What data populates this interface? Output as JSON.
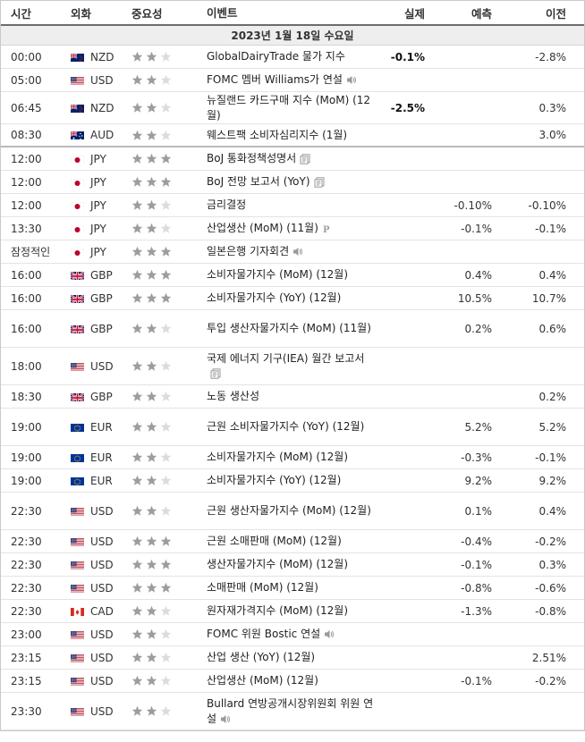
{
  "header": {
    "time": "시간",
    "currency": "외화",
    "importance": "중요성",
    "event": "이벤트",
    "actual": "실제",
    "forecast": "예측",
    "previous": "이전"
  },
  "date_label": "2023년 1월 18일 수요일",
  "colors": {
    "star_filled": "#9d9d9d",
    "star_empty": "#dcdcdc",
    "header_border": "#6c6c6c",
    "date_bg": "#eeeeee"
  },
  "events": [
    {
      "time": "00:00",
      "flag": "nz",
      "currency": "NZD",
      "stars": 2,
      "title": "GlobalDairyTrade 물가 지수",
      "icon": "",
      "actual": "-0.1%",
      "forecast": "",
      "previous": "-2.8%"
    },
    {
      "time": "05:00",
      "flag": "us",
      "currency": "USD",
      "stars": 2,
      "title": "FOMC 멤버 Williams가 연설",
      "icon": "speaker-icon",
      "actual": "",
      "forecast": "",
      "previous": ""
    },
    {
      "time": "06:45",
      "flag": "nz",
      "currency": "NZD",
      "stars": 2,
      "title": "뉴질랜드 카드구매 지수 (MoM) (12월)",
      "icon": "",
      "actual": "-2.5%",
      "forecast": "",
      "previous": "0.3%"
    },
    {
      "time": "08:30",
      "flag": "au",
      "currency": "AUD",
      "stars": 2,
      "title": "웨스트팩 소비자심리지수 (1월)",
      "icon": "",
      "actual": "",
      "forecast": "",
      "previous": "3.0%"
    },
    {
      "time": "12:00",
      "flag": "jp",
      "currency": "JPY",
      "stars": 3,
      "title": "BoJ 통화정책성명서",
      "icon": "document-icon",
      "actual": "",
      "forecast": "",
      "previous": ""
    },
    {
      "time": "12:00",
      "flag": "jp",
      "currency": "JPY",
      "stars": 3,
      "title": "BoJ 전망 보고서 (YoY)",
      "icon": "document-icon",
      "actual": "",
      "forecast": "",
      "previous": ""
    },
    {
      "time": "12:00",
      "flag": "jp",
      "currency": "JPY",
      "stars": 2,
      "title": "금리결정",
      "icon": "",
      "actual": "",
      "forecast": "-0.10%",
      "previous": "-0.10%"
    },
    {
      "time": "13:30",
      "flag": "jp",
      "currency": "JPY",
      "stars": 2,
      "title": "산업생산 (MoM) (11월)",
      "icon": "preliminary-icon",
      "actual": "",
      "forecast": "-0.1%",
      "previous": "-0.1%"
    },
    {
      "time": "잠정적인",
      "flag": "jp",
      "currency": "JPY",
      "stars": 3,
      "title": "일본은행 기자회견",
      "icon": "speaker-icon",
      "actual": "",
      "forecast": "",
      "previous": ""
    },
    {
      "time": "16:00",
      "flag": "gb",
      "currency": "GBP",
      "stars": 3,
      "title": "소비자물가지수 (MoM) (12월)",
      "icon": "",
      "actual": "",
      "forecast": "0.4%",
      "previous": "0.4%"
    },
    {
      "time": "16:00",
      "flag": "gb",
      "currency": "GBP",
      "stars": 3,
      "title": "소비자물가지수 (YoY) (12월)",
      "icon": "",
      "actual": "",
      "forecast": "10.5%",
      "previous": "10.7%"
    },
    {
      "time": "16:00",
      "flag": "gb",
      "currency": "GBP",
      "stars": 2,
      "title": "투입 생산자물가지수 (MoM) (11월)",
      "icon": "",
      "actual": "",
      "forecast": "0.2%",
      "previous": "0.6%"
    },
    {
      "time": "18:00",
      "flag": "us",
      "currency": "USD",
      "stars": 2,
      "title": "국제 에너지 기구(IEA) 월간 보고서",
      "icon": "document-icon",
      "actual": "",
      "forecast": "",
      "previous": ""
    },
    {
      "time": "18:30",
      "flag": "gb",
      "currency": "GBP",
      "stars": 2,
      "title": "노동 생산성",
      "icon": "",
      "actual": "",
      "forecast": "",
      "previous": "0.2%"
    },
    {
      "time": "19:00",
      "flag": "eu",
      "currency": "EUR",
      "stars": 2,
      "title": "근원 소비자물가지수 (YoY) (12월)",
      "icon": "",
      "actual": "",
      "forecast": "5.2%",
      "previous": "5.2%"
    },
    {
      "time": "19:00",
      "flag": "eu",
      "currency": "EUR",
      "stars": 2,
      "title": "소비자물가지수 (MoM) (12월)",
      "icon": "",
      "actual": "",
      "forecast": "-0.3%",
      "previous": "-0.1%"
    },
    {
      "time": "19:00",
      "flag": "eu",
      "currency": "EUR",
      "stars": 2,
      "title": "소비자물가지수 (YoY) (12월)",
      "icon": "",
      "actual": "",
      "forecast": "9.2%",
      "previous": "9.2%"
    },
    {
      "time": "22:30",
      "flag": "us",
      "currency": "USD",
      "stars": 2,
      "title": "근원 생산자물가지수 (MoM) (12월)",
      "icon": "",
      "actual": "",
      "forecast": "0.1%",
      "previous": "0.4%"
    },
    {
      "time": "22:30",
      "flag": "us",
      "currency": "USD",
      "stars": 3,
      "title": "근원 소매판매 (MoM) (12월)",
      "icon": "",
      "actual": "",
      "forecast": "-0.4%",
      "previous": "-0.2%"
    },
    {
      "time": "22:30",
      "flag": "us",
      "currency": "USD",
      "stars": 3,
      "title": "생산자물가지수 (MoM) (12월)",
      "icon": "",
      "actual": "",
      "forecast": "-0.1%",
      "previous": "0.3%"
    },
    {
      "time": "22:30",
      "flag": "us",
      "currency": "USD",
      "stars": 3,
      "title": "소매판매 (MoM) (12월)",
      "icon": "",
      "actual": "",
      "forecast": "-0.8%",
      "previous": "-0.6%"
    },
    {
      "time": "22:30",
      "flag": "ca",
      "currency": "CAD",
      "stars": 2,
      "title": "원자재가격지수 (MoM) (12월)",
      "icon": "",
      "actual": "",
      "forecast": "-1.3%",
      "previous": "-0.8%"
    },
    {
      "time": "23:00",
      "flag": "us",
      "currency": "USD",
      "stars": 2,
      "title": "FOMC 위원 Bostic 연설",
      "icon": "speaker-icon",
      "actual": "",
      "forecast": "",
      "previous": ""
    },
    {
      "time": "23:15",
      "flag": "us",
      "currency": "USD",
      "stars": 2,
      "title": "산업 생산 (YoY) (12월)",
      "icon": "",
      "actual": "",
      "forecast": "",
      "previous": "2.51%"
    },
    {
      "time": "23:15",
      "flag": "us",
      "currency": "USD",
      "stars": 2,
      "title": "산업생산 (MoM) (12월)",
      "icon": "",
      "actual": "",
      "forecast": "-0.1%",
      "previous": "-0.2%"
    },
    {
      "time": "23:30",
      "flag": "us",
      "currency": "USD",
      "stars": 2,
      "title": "Bullard 연방공개시장위원회 위원 연설",
      "icon": "speaker-icon",
      "actual": "",
      "forecast": "",
      "previous": ""
    }
  ]
}
